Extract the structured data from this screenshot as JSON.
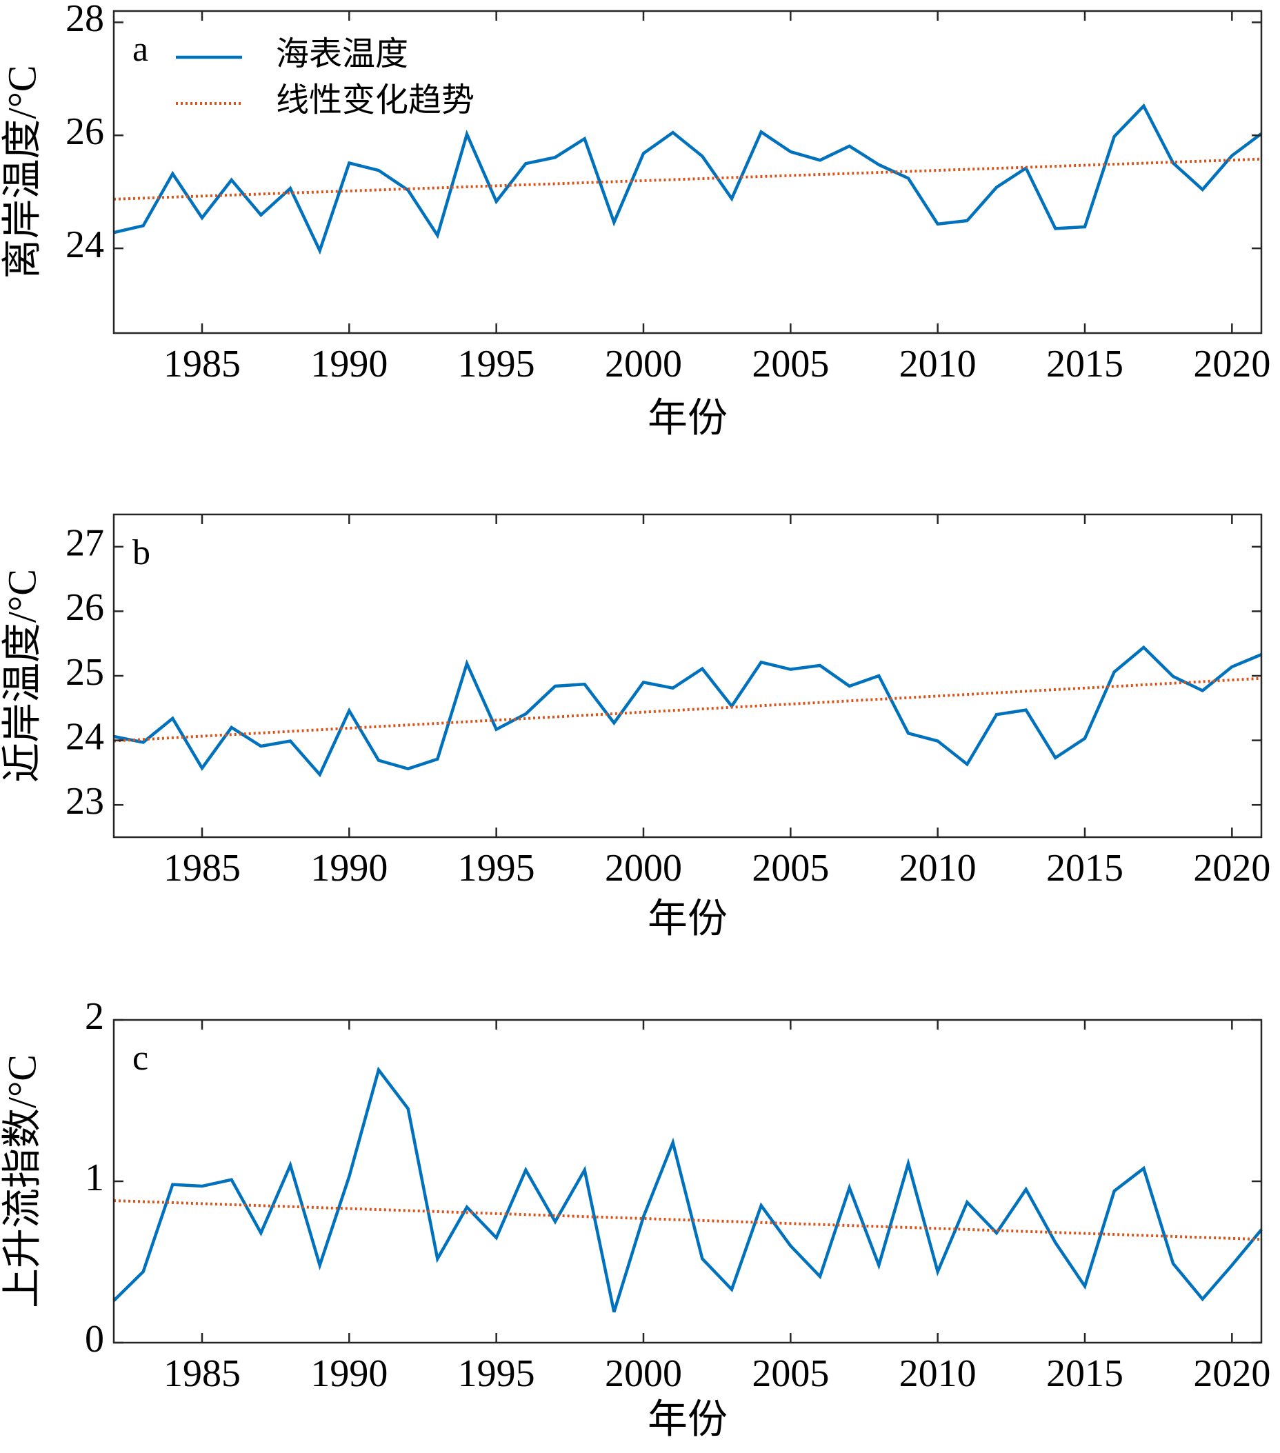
{
  "chart_data": [
    {
      "type": "line",
      "annotation": "a",
      "xlabel": "年份",
      "ylabel": "离岸温度/°C",
      "legend": "upper left",
      "x": [
        1982,
        1983,
        1984,
        1985,
        1986,
        1987,
        1988,
        1989,
        1990,
        1991,
        1992,
        1993,
        1994,
        1995,
        1996,
        1997,
        1998,
        1999,
        2000,
        2001,
        2002,
        2003,
        2004,
        2005,
        2006,
        2007,
        2008,
        2009,
        2010,
        2011,
        2012,
        2013,
        2014,
        2015,
        2016,
        2017,
        2018,
        2019,
        2020,
        2021
      ],
      "series": [
        {
          "name": "海表温度",
          "color": "#0072bd",
          "style": "solid",
          "values": [
            24.28,
            24.4,
            25.32,
            24.54,
            25.21,
            24.59,
            25.06,
            23.96,
            25.51,
            25.38,
            25.03,
            24.23,
            26.02,
            24.83,
            25.5,
            25.61,
            25.94,
            24.46,
            25.68,
            26.05,
            25.63,
            24.88,
            26.06,
            25.71,
            25.56,
            25.81,
            25.48,
            25.24,
            24.43,
            24.49,
            25.08,
            25.42,
            24.35,
            24.38,
            25.98,
            26.52,
            25.51,
            25.04,
            25.64,
            26.03
          ]
        },
        {
          "name": "线性变化趋势",
          "color": "#d95319",
          "style": "dotted",
          "x": [
            1982,
            2021
          ],
          "values": [
            24.87,
            25.58
          ]
        }
      ],
      "xlim": [
        1982,
        2021
      ],
      "xticks": [
        1985,
        1990,
        1995,
        2000,
        2005,
        2010,
        2015,
        2020
      ],
      "ylim": [
        22.5,
        28.2
      ],
      "yticks": [
        24,
        26,
        28
      ]
    },
    {
      "type": "line",
      "annotation": "b",
      "xlabel": "年份",
      "ylabel": "近岸温度/°C",
      "x": [
        1982,
        1983,
        1984,
        1985,
        1986,
        1987,
        1988,
        1989,
        1990,
        1991,
        1992,
        1993,
        1994,
        1995,
        1996,
        1997,
        1998,
        1999,
        2000,
        2001,
        2002,
        2003,
        2004,
        2005,
        2006,
        2007,
        2008,
        2009,
        2010,
        2011,
        2012,
        2013,
        2014,
        2015,
        2016,
        2017,
        2018,
        2019,
        2020,
        2021
      ],
      "series": [
        {
          "color": "#0072bd",
          "style": "solid",
          "values": [
            24.06,
            23.97,
            24.34,
            23.57,
            24.2,
            23.91,
            23.99,
            23.47,
            24.46,
            23.69,
            23.56,
            23.71,
            25.19,
            24.17,
            24.41,
            24.84,
            24.87,
            24.27,
            24.9,
            24.81,
            25.11,
            24.53,
            25.21,
            25.1,
            25.16,
            24.84,
            25.0,
            24.11,
            23.99,
            23.63,
            24.4,
            24.47,
            23.73,
            24.03,
            25.06,
            25.44,
            24.99,
            24.77,
            25.14,
            25.33
          ]
        },
        {
          "color": "#d95319",
          "style": "dotted",
          "x": [
            1982,
            2021
          ],
          "values": [
            23.99,
            24.96
          ]
        }
      ],
      "xlim": [
        1982,
        2021
      ],
      "xticks": [
        1985,
        1990,
        1995,
        2000,
        2005,
        2010,
        2015,
        2020
      ],
      "ylim": [
        22.5,
        27.5
      ],
      "yticks": [
        23,
        24,
        25,
        26,
        27
      ]
    },
    {
      "type": "line",
      "annotation": "c",
      "xlabel": "年份",
      "ylabel": "上升流指数/°C",
      "x": [
        1982,
        1983,
        1984,
        1985,
        1986,
        1987,
        1988,
        1989,
        1990,
        1991,
        1992,
        1993,
        1994,
        1995,
        1996,
        1997,
        1998,
        1999,
        2000,
        2001,
        2002,
        2003,
        2004,
        2005,
        2006,
        2007,
        2008,
        2009,
        2010,
        2011,
        2012,
        2013,
        2014,
        2015,
        2016,
        2017,
        2018,
        2019,
        2020,
        2021
      ],
      "series": [
        {
          "color": "#0072bd",
          "style": "solid",
          "values": [
            0.26,
            0.44,
            0.98,
            0.97,
            1.01,
            0.68,
            1.1,
            0.48,
            1.03,
            1.69,
            1.45,
            0.52,
            0.84,
            0.65,
            1.07,
            0.75,
            1.07,
            0.19,
            0.78,
            1.24,
            0.52,
            0.33,
            0.85,
            0.6,
            0.41,
            0.96,
            0.48,
            1.11,
            0.44,
            0.87,
            0.68,
            0.95,
            0.62,
            0.35,
            0.94,
            1.08,
            0.49,
            0.27,
            0.48,
            0.7
          ]
        },
        {
          "color": "#d95319",
          "style": "dotted",
          "x": [
            1982,
            2021
          ],
          "values": [
            0.88,
            0.64
          ]
        }
      ],
      "xlim": [
        1982,
        2021
      ],
      "xticks": [
        1985,
        1990,
        1995,
        2000,
        2005,
        2010,
        2015,
        2020
      ],
      "ylim": [
        0,
        2
      ],
      "yticks": [
        0,
        1,
        2
      ]
    }
  ]
}
